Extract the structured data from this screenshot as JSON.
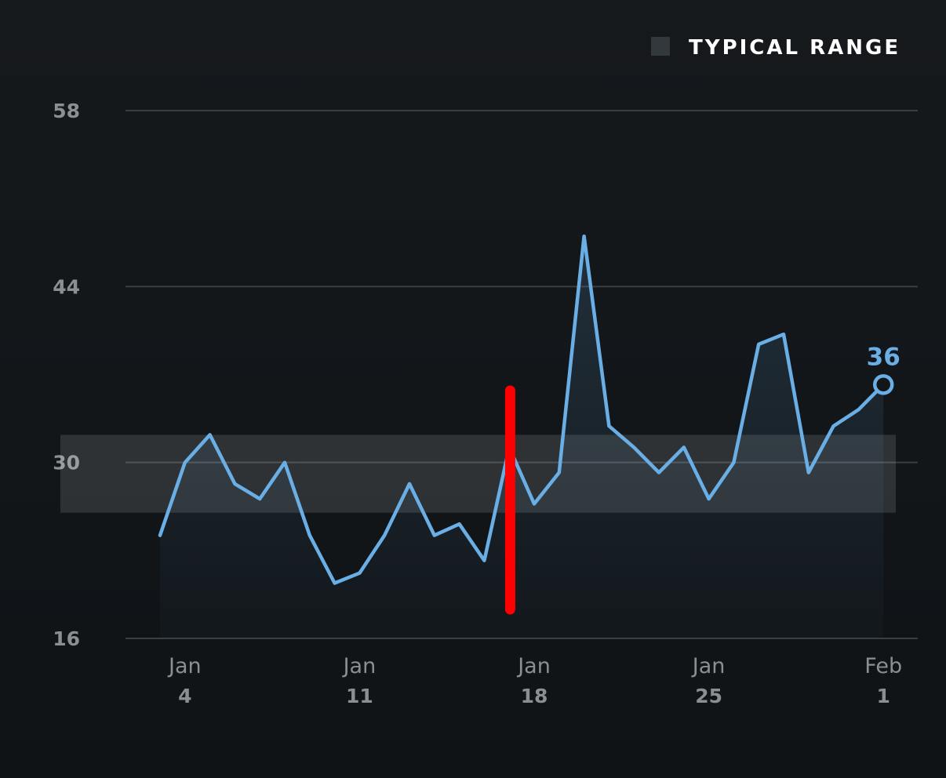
{
  "chart_data": {
    "type": "line",
    "title": "",
    "xlabel": "",
    "ylabel": "",
    "ylim": [
      16,
      58
    ],
    "yticks": [
      "58",
      "44",
      "30",
      "16"
    ],
    "ytick_values": [
      58,
      44,
      30,
      16
    ],
    "grid": true,
    "legend": {
      "position": "top-right",
      "label": "TYPICAL RANGE"
    },
    "typical_range": [
      26,
      32.2
    ],
    "xticks": [
      {
        "month": "Jan",
        "day": "4"
      },
      {
        "month": "Jan",
        "day": "11"
      },
      {
        "month": "Jan",
        "day": "18"
      },
      {
        "month": "Jan",
        "day": "25"
      },
      {
        "month": "Feb",
        "day": "1"
      }
    ],
    "xtick_dates": [
      "2021-01-04",
      "2021-01-11",
      "2021-01-18",
      "2021-01-25",
      "2021-02-01"
    ],
    "marker_date": "2021-01-16",
    "last_label": "36",
    "series": [
      {
        "x": [
          "2021-01-03",
          "2021-01-04",
          "2021-01-05",
          "2021-01-06",
          "2021-01-07",
          "2021-01-08",
          "2021-01-09",
          "2021-01-10",
          "2021-01-11",
          "2021-01-12",
          "2021-01-13",
          "2021-01-14",
          "2021-01-15",
          "2021-01-16",
          "2021-01-17",
          "2021-01-18",
          "2021-01-19",
          "2021-01-20",
          "2021-01-21",
          "2021-01-22",
          "2021-01-23",
          "2021-01-24",
          "2021-01-25",
          "2021-01-26",
          "2021-01-27",
          "2021-01-28",
          "2021-01-29",
          "2021-01-30",
          "2021-01-31",
          "2021-02-01"
        ],
        "values": [
          24.2,
          30,
          32.2,
          28.3,
          27.1,
          30,
          24.2,
          20.4,
          21.2,
          24.2,
          28.3,
          24.2,
          25.1,
          22.2,
          31.2,
          26.7,
          29.2,
          48,
          32.9,
          31.2,
          29.2,
          31.2,
          27.1,
          30,
          39.4,
          40.2,
          29.2,
          32.9,
          34.2,
          36.2
        ],
        "color": "#6aaee6"
      }
    ],
    "colors": {
      "line": "#6aaee6",
      "marker": "#ff0000",
      "band": "#ffffff",
      "grid": "#3a3e42",
      "legend_swatch": "#33383d"
    }
  }
}
